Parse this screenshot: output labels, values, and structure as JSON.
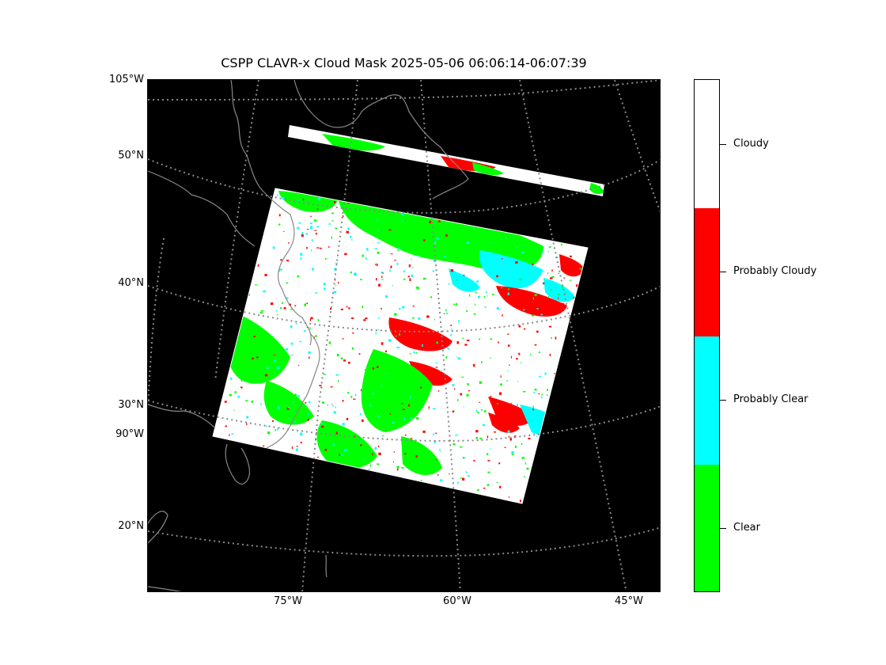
{
  "title": "CSPP CLAVR-x Cloud Mask 2025-05-06 06:06:14-06:07:39",
  "colors": {
    "background": "#000000",
    "coastline": "#888888",
    "graticule": "#888888",
    "clear": "#00ff00",
    "probably_clear": "#00ffff",
    "probably_cloudy": "#ff0000",
    "cloudy": "#ffffff"
  },
  "map": {
    "latitude_labels": [
      "105°W",
      "50°N",
      "40°N",
      "30°N",
      "90°W",
      "20°N"
    ],
    "longitude_labels": [
      "75°W",
      "60°W",
      "45°W"
    ]
  },
  "colorbar": {
    "categories": [
      {
        "label": "Cloudy",
        "color": "#ffffff"
      },
      {
        "label": "Probably Cloudy",
        "color": "#ff0000"
      },
      {
        "label": "Probably Clear",
        "color": "#00ffff"
      },
      {
        "label": "Clear",
        "color": "#00ff00"
      }
    ]
  }
}
